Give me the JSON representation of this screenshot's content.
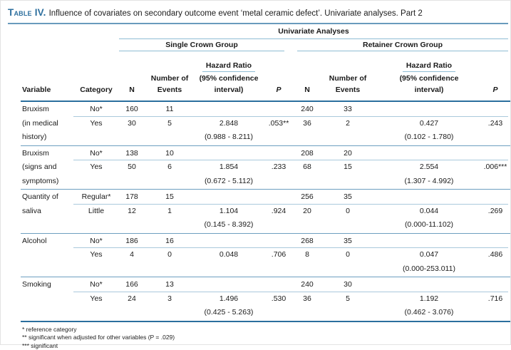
{
  "title": {
    "label": "Table IV.",
    "text": "Influence of covariates on secondary outcome event ‘metal ceramic defect’. Univariate analyses. Part 2"
  },
  "table": {
    "span_header": "Univariate Analyses",
    "group1": "Single Crown Group",
    "group2": "Retainer Crown Group",
    "columns": {
      "variable": "Variable",
      "category": "Category",
      "n": "N",
      "events1": "Number of",
      "events2": "Events",
      "hazard": "Hazard Ratio",
      "ci1": "(95% confidence",
      "ci2": "interval)",
      "p": "P"
    },
    "blocks": [
      {
        "v1": "Bruxism",
        "v2": "(in medical",
        "v3": "history)",
        "ref_cat": "No*",
        "ref_n1": "160",
        "ref_e1": "11",
        "ref_n2": "240",
        "ref_e2": "33",
        "cat": "Yes",
        "n1": "30",
        "e1": "5",
        "hr1": "2.848",
        "p1": ".053**",
        "n2": "36",
        "e2": "2",
        "hr2": "0.427",
        "p2": ".243",
        "ci1": "(0.988 - 8.211)",
        "ci2": "(0.102 - 1.780)"
      },
      {
        "v1": "Bruxism",
        "v2": "(signs and",
        "v3": "symptoms)",
        "ref_cat": "No*",
        "ref_n1": "138",
        "ref_e1": "10",
        "ref_n2": "208",
        "ref_e2": "20",
        "cat": "Yes",
        "n1": "50",
        "e1": "6",
        "hr1": "1.854",
        "p1": ".233",
        "n2": "68",
        "e2": "15",
        "hr2": "2.554",
        "p2": ".006***",
        "ci1": "(0.672 - 5.112)",
        "ci2": "(1.307 - 4.992)"
      },
      {
        "v1": "Quantity of",
        "v2": "saliva",
        "v3": "",
        "ref_cat": "Regular*",
        "ref_n1": "178",
        "ref_e1": "15",
        "ref_n2": "256",
        "ref_e2": "35",
        "cat": "Little",
        "n1": "12",
        "e1": "1",
        "hr1": "1.104",
        "p1": ".924",
        "n2": "20",
        "e2": "0",
        "hr2": "0.044",
        "p2": ".269",
        "ci1": "(0.145 - 8.392)",
        "ci2": "(0.000-11.102)"
      },
      {
        "v1": "Alcohol",
        "v2": "",
        "v3": "",
        "ref_cat": "No*",
        "ref_n1": "186",
        "ref_e1": "16",
        "ref_n2": "268",
        "ref_e2": "35",
        "cat": "Yes",
        "n1": "4",
        "e1": "0",
        "hr1": "0.048",
        "p1": ".706",
        "n2": "8",
        "e2": "0",
        "hr2": "0.047",
        "p2": ".486",
        "ci1": "",
        "ci2": "(0.000-253.011)"
      },
      {
        "v1": "Smoking",
        "v2": "",
        "v3": "",
        "ref_cat": "No*",
        "ref_n1": "166",
        "ref_e1": "13",
        "ref_n2": "240",
        "ref_e2": "30",
        "cat": "Yes",
        "n1": "24",
        "e1": "3",
        "hr1": "1.496",
        "p1": ".530",
        "n2": "36",
        "e2": "5",
        "hr2": "1.192",
        "p2": ".716",
        "ci1": "(0.425 - 5.263)",
        "ci2": "(0.462 - 3.076)"
      }
    ]
  },
  "footnotes": [
    "* reference category",
    "** significant when adjusted for other variables (P = .029)",
    "*** significant"
  ],
  "colors": {
    "title_blue": "#2d6f9e",
    "rule_dark": "#2b6f9e",
    "rule_light": "#8fbdd4"
  }
}
